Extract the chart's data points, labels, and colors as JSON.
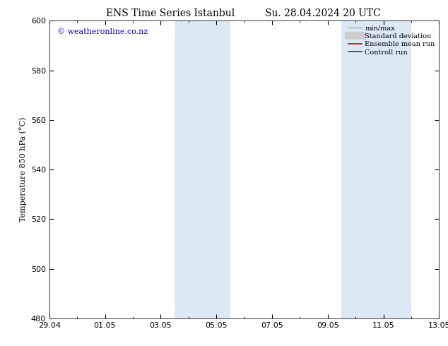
{
  "title_left": "ENS Time Series Istanbul",
  "title_right": "Su. 28.04.2024 20 UTC",
  "ylabel": "Temperature 850 hPa (°C)",
  "watermark": "© weatheronline.co.nz",
  "watermark_color": "#0000cc",
  "ylim": [
    480,
    600
  ],
  "yticks": [
    480,
    500,
    520,
    540,
    560,
    580,
    600
  ],
  "xtick_labels": [
    "29.04",
    "01.05",
    "03.05",
    "05.05",
    "07.05",
    "09.05",
    "11.05",
    "13.05"
  ],
  "xtick_positions": [
    0,
    2,
    4,
    6,
    8,
    10,
    12,
    14
  ],
  "xlim": [
    0,
    14
  ],
  "shaded_bands": [
    {
      "x_start": 4.5,
      "x_end": 6.5
    },
    {
      "x_start": 10.5,
      "x_end": 13.0
    }
  ],
  "shade_color": "#dce9f5",
  "background_color": "#ffffff",
  "legend_entries": [
    {
      "label": "min/max",
      "color": "#aaaaaa",
      "lw": 1.0,
      "type": "line"
    },
    {
      "label": "Standard deviation",
      "color": "#cccccc",
      "lw": 5,
      "type": "bar"
    },
    {
      "label": "Ensemble mean run",
      "color": "#cc0000",
      "lw": 1.2,
      "type": "line"
    },
    {
      "label": "Controll run",
      "color": "#006600",
      "lw": 1.2,
      "type": "line"
    }
  ],
  "title_fontsize": 10,
  "axis_fontsize": 8,
  "tick_fontsize": 8,
  "watermark_fontsize": 8
}
